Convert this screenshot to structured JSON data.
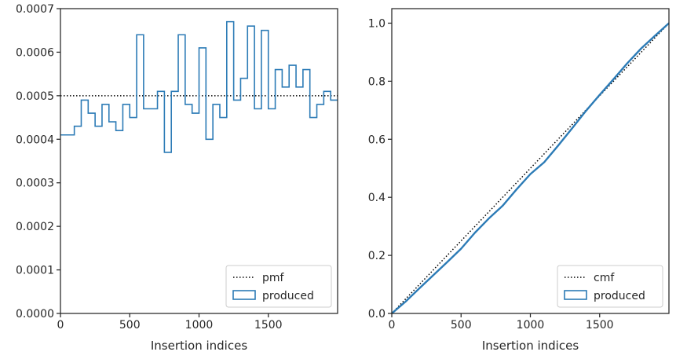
{
  "chart_data": [
    {
      "type": "histogram",
      "title": "",
      "xlabel": "Insertion indices",
      "ylabel": "",
      "xlim": [
        0,
        2000
      ],
      "ylim": [
        0,
        0.0007
      ],
      "xticks": [
        0,
        500,
        1000,
        1500
      ],
      "xtick_labels": [
        "0",
        "500",
        "1000",
        "1500"
      ],
      "yticks": [
        0,
        0.0001,
        0.0002,
        0.0003,
        0.0004,
        0.0005,
        0.0006,
        0.0007
      ],
      "ytick_labels": [
        "0.0000",
        "0.0001",
        "0.0002",
        "0.0003",
        "0.0004",
        "0.0005",
        "0.0006",
        "0.0007"
      ],
      "grid": false,
      "legend_position": "lower-right",
      "series": [
        {
          "name": "pmf",
          "kind": "hline",
          "style": "dotted",
          "color": "#000000",
          "y": 0.0005
        },
        {
          "name": "produced",
          "kind": "step-histogram",
          "color": "#2c7bb6",
          "bin_width": 50,
          "bin_starts": [
            0,
            50,
            100,
            150,
            200,
            250,
            300,
            350,
            400,
            450,
            500,
            550,
            600,
            650,
            700,
            750,
            800,
            850,
            900,
            950,
            1000,
            1050,
            1100,
            1150,
            1200,
            1250,
            1300,
            1350,
            1400,
            1450,
            1500,
            1550,
            1600,
            1650,
            1700,
            1750,
            1800,
            1850,
            1900,
            1950
          ],
          "values": [
            0.00041,
            0.00041,
            0.00043,
            0.00049,
            0.00046,
            0.00043,
            0.00048,
            0.00044,
            0.00042,
            0.00048,
            0.00045,
            0.00064,
            0.00047,
            0.00047,
            0.00051,
            0.00037,
            0.00051,
            0.00064,
            0.00048,
            0.00046,
            0.00061,
            0.0004,
            0.00048,
            0.00045,
            0.00067,
            0.00049,
            0.00054,
            0.00066,
            0.00047,
            0.00065,
            0.00047,
            0.00056,
            0.00052,
            0.00057,
            0.00052,
            0.00056,
            0.00045,
            0.00048,
            0.00051,
            0.00049
          ]
        }
      ]
    },
    {
      "type": "line",
      "title": "",
      "xlabel": "Insertion indices",
      "ylabel": "",
      "xlim": [
        0,
        2000
      ],
      "ylim": [
        0,
        1.05
      ],
      "xticks": [
        0,
        500,
        1000,
        1500
      ],
      "xtick_labels": [
        "0",
        "500",
        "1000",
        "1500"
      ],
      "yticks": [
        0,
        0.2,
        0.4,
        0.6,
        0.8,
        1.0
      ],
      "ytick_labels": [
        "0.0",
        "0.2",
        "0.4",
        "0.6",
        "0.8",
        "1.0"
      ],
      "grid": false,
      "legend_position": "lower-right",
      "series": [
        {
          "name": "cmf",
          "kind": "line",
          "style": "dotted",
          "color": "#000000",
          "x": [
            0,
            2000
          ],
          "y": [
            0,
            1.0
          ]
        },
        {
          "name": "produced",
          "kind": "step-cumulative",
          "color": "#2c7bb6",
          "x": [
            0,
            100,
            200,
            300,
            400,
            500,
            600,
            700,
            800,
            900,
            1000,
            1100,
            1200,
            1300,
            1400,
            1500,
            1600,
            1700,
            1800,
            1900,
            2000
          ],
          "y": [
            0,
            0.041,
            0.087,
            0.132,
            0.177,
            0.223,
            0.278,
            0.327,
            0.371,
            0.427,
            0.48,
            0.521,
            0.578,
            0.637,
            0.697,
            0.753,
            0.807,
            0.862,
            0.913,
            0.957,
            1.0
          ]
        }
      ]
    }
  ]
}
